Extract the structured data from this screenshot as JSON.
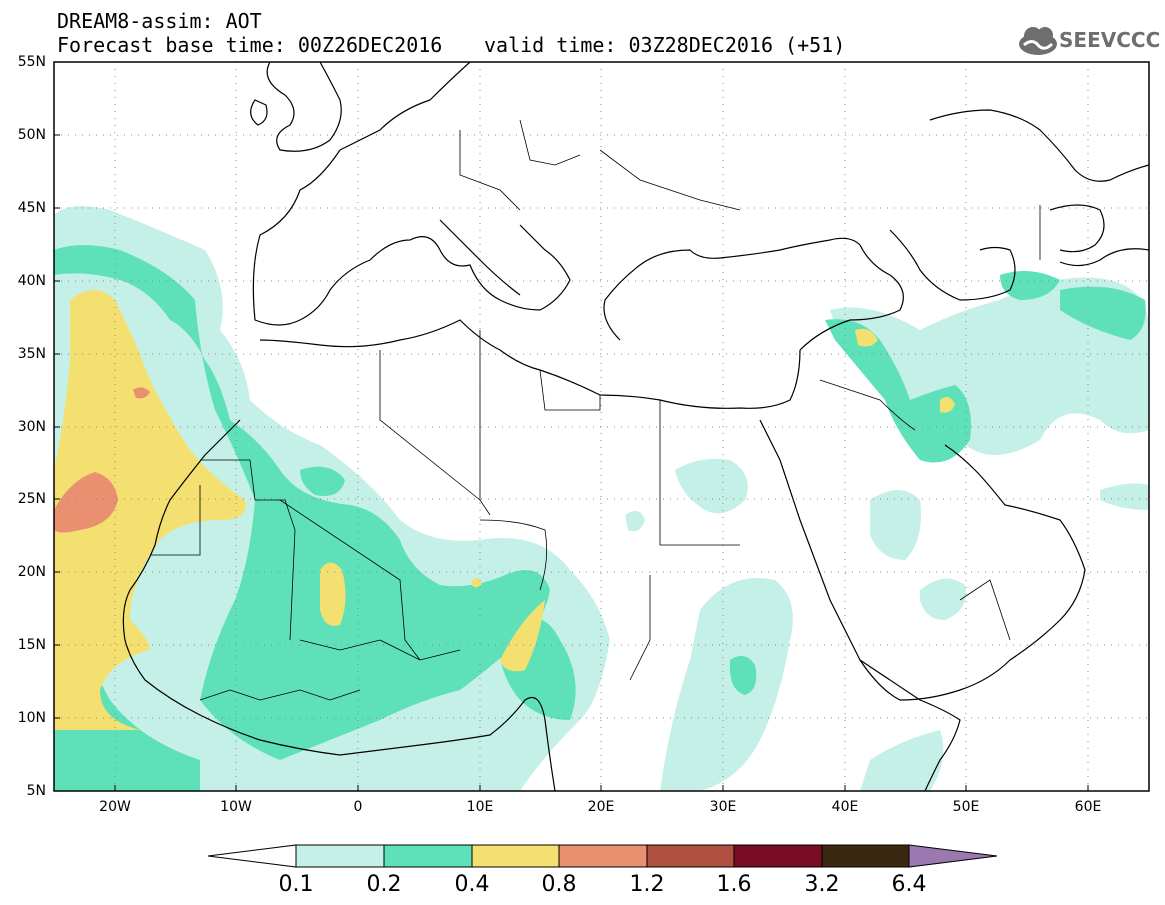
{
  "header": {
    "title": "DREAM8-assim: AOT",
    "base_time": "Forecast base time: 00Z26DEC2016",
    "valid_time": "valid time: 03Z28DEC2016 (+51)",
    "logo_text": "SEEVCCC",
    "logo_icon": "cloud-icon"
  },
  "map": {
    "lat_labels": [
      "55N",
      "50N",
      "45N",
      "40N",
      "35N",
      "30N",
      "25N",
      "20N",
      "15N",
      "10N",
      "5N"
    ],
    "lon_labels": [
      "20W",
      "10W",
      "0",
      "10E",
      "20E",
      "30E",
      "40E",
      "50E",
      "60E"
    ],
    "extent": {
      "lon_min": -25,
      "lon_max": 65,
      "lat_min": 5,
      "lat_max": 55
    },
    "grid": "dotted",
    "border_color": "#000000"
  },
  "colorbar": {
    "labels": [
      "0.1",
      "0.2",
      "0.4",
      "0.8",
      "1.2",
      "1.6",
      "3.2",
      "6.4"
    ],
    "colors": [
      "#ffffff",
      "#c5f0e8",
      "#5ee0b8",
      "#f4e070",
      "#e89070",
      "#b05040",
      "#7a0c28",
      "#3c2810",
      "#9c78b0"
    ]
  }
}
